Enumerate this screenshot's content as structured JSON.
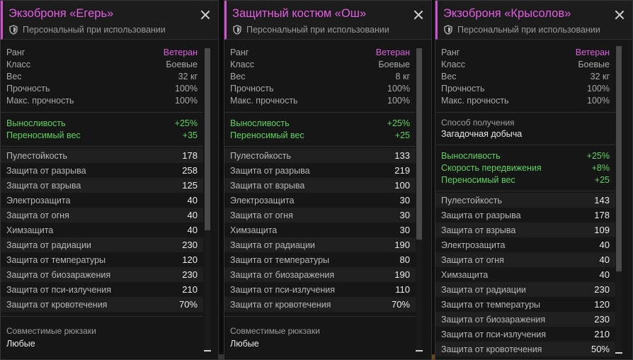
{
  "cards": [
    {
      "title": "Экзоброня «Егерь»",
      "subtitle": "Персональный при использовании",
      "stats": [
        {
          "label": "Ранг",
          "value": "Ветеран"
        },
        {
          "label": "Класс",
          "value": "Боевые"
        },
        {
          "label": "Вес",
          "value": "32 кг"
        },
        {
          "label": "Прочность",
          "value": "100%"
        },
        {
          "label": "Макс. прочность",
          "value": "100%"
        }
      ],
      "bonuses": [
        {
          "label": "Выносливость",
          "value": "+25%"
        },
        {
          "label": "Переносимый вес",
          "value": "+35"
        }
      ],
      "resistances": [
        {
          "label": "Пулестойкость",
          "value": "178"
        },
        {
          "label": "Защита от разрыва",
          "value": "258"
        },
        {
          "label": "Защита от взрыва",
          "value": "125"
        },
        {
          "label": "Электрозащита",
          "value": "40"
        },
        {
          "label": "Защита от огня",
          "value": "40"
        },
        {
          "label": "Химзащита",
          "value": "40"
        },
        {
          "label": "Защита от радиации",
          "value": "230"
        },
        {
          "label": "Защита от температуры",
          "value": "120"
        },
        {
          "label": "Защита от биозаражения",
          "value": "230"
        },
        {
          "label": "Защита от пси-излучения",
          "value": "210"
        },
        {
          "label": "Защита от кровотечения",
          "value": "70%"
        }
      ],
      "backpacks_label": "Совместимые рюкзаки",
      "backpacks_value": "Любые"
    },
    {
      "title": "Защитный костюм «Ош»",
      "subtitle": "Персональный при использовании",
      "stats": [
        {
          "label": "Ранг",
          "value": "Ветеран"
        },
        {
          "label": "Класс",
          "value": "Боевые"
        },
        {
          "label": "Вес",
          "value": "8 кг"
        },
        {
          "label": "Прочность",
          "value": "100%"
        },
        {
          "label": "Макс. прочность",
          "value": "100%"
        }
      ],
      "bonuses": [
        {
          "label": "Выносливость",
          "value": "+25%"
        },
        {
          "label": "Переносимый вес",
          "value": "+25"
        }
      ],
      "resistances": [
        {
          "label": "Пулестойкость",
          "value": "133"
        },
        {
          "label": "Защита от разрыва",
          "value": "219"
        },
        {
          "label": "Защита от взрыва",
          "value": "100"
        },
        {
          "label": "Электрозащита",
          "value": "30"
        },
        {
          "label": "Защита от огня",
          "value": "30"
        },
        {
          "label": "Химзащита",
          "value": "30"
        },
        {
          "label": "Защита от радиации",
          "value": "190"
        },
        {
          "label": "Защита от температуры",
          "value": "80"
        },
        {
          "label": "Защита от биозаражения",
          "value": "190"
        },
        {
          "label": "Защита от пси-излучения",
          "value": "110"
        },
        {
          "label": "Защита от кровотечения",
          "value": "70%"
        }
      ],
      "backpacks_label": "Совместимые рюкзаки",
      "backpacks_value": "Любые"
    },
    {
      "title": "Экзоброня «Крысолов»",
      "subtitle": "Персональный при использовании",
      "stats": [
        {
          "label": "Ранг",
          "value": "Ветеран"
        },
        {
          "label": "Класс",
          "value": "Боевые"
        },
        {
          "label": "Вес",
          "value": "32 кг"
        },
        {
          "label": "Прочность",
          "value": "100%"
        },
        {
          "label": "Макс. прочность",
          "value": "100%"
        }
      ],
      "obtain_label": "Способ получения",
      "obtain_value": "Загадочная добыча",
      "bonuses": [
        {
          "label": "Выносливость",
          "value": "+25%"
        },
        {
          "label": "Скорость передвижения",
          "value": "+8%"
        },
        {
          "label": "Переносимый вес",
          "value": "+25"
        }
      ],
      "resistances": [
        {
          "label": "Пулестойкость",
          "value": "143"
        },
        {
          "label": "Защита от разрыва",
          "value": "178"
        },
        {
          "label": "Защита от взрыва",
          "value": "109"
        },
        {
          "label": "Электрозащита",
          "value": "40"
        },
        {
          "label": "Защита от огня",
          "value": "40"
        },
        {
          "label": "Химзащита",
          "value": "40"
        },
        {
          "label": "Защита от радиации",
          "value": "230"
        },
        {
          "label": "Защита от температуры",
          "value": "120"
        },
        {
          "label": "Защита от биозаражения",
          "value": "230"
        },
        {
          "label": "Защита от пси-излучения",
          "value": "210"
        },
        {
          "label": "Защита от кровотечения",
          "value": "50%"
        }
      ]
    }
  ],
  "colors": {
    "accent": "#e35ee3",
    "bonus": "#5fd35f",
    "rank": "#d860d8"
  },
  "icons": {
    "subtitle_icon": "shield-icon",
    "close_icon": "close-icon"
  }
}
